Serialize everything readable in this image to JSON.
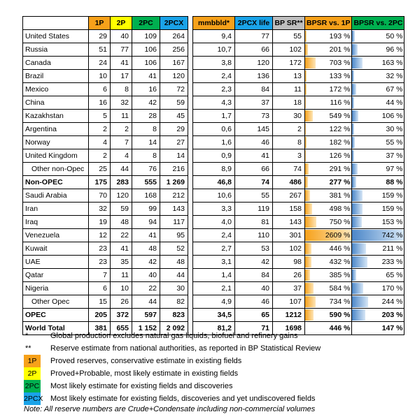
{
  "headers": [
    "",
    "1P",
    "2P",
    "2PC",
    "2PCX",
    "",
    "mmbbld*",
    "2PCX life",
    "BP SR**",
    "BPSR vs. 1P",
    "BPSR vs. 2PC"
  ],
  "rows": [
    {
      "name": "United States",
      "p1": "29",
      "p2": "40",
      "pc2": "109",
      "pcx2": "264",
      "mmbbld": "9,4",
      "life": "77",
      "bpsr": "55",
      "v1": "193 %",
      "v2": "50 %",
      "f1": 0.035,
      "f2": 0.05,
      "bold": false
    },
    {
      "name": "Russia",
      "p1": "51",
      "p2": "77",
      "pc2": "106",
      "pcx2": "256",
      "mmbbld": "10,7",
      "life": "66",
      "bpsr": "102",
      "v1": "201 %",
      "v2": "96 %",
      "f1": 0.06,
      "f2": 0.1,
      "bold": false
    },
    {
      "name": "Canada",
      "p1": "24",
      "p2": "41",
      "pc2": "106",
      "pcx2": "167",
      "mmbbld": "3,8",
      "life": "120",
      "bpsr": "172",
      "v1": "703 %",
      "v2": "163 %",
      "f1": 0.22,
      "f2": 0.2,
      "bold": false
    },
    {
      "name": "Brazil",
      "p1": "10",
      "p2": "17",
      "pc2": "41",
      "pcx2": "120",
      "mmbbld": "2,4",
      "life": "136",
      "bpsr": "13",
      "v1": "133 %",
      "v2": "32 %",
      "f1": 0.025,
      "f2": 0.03,
      "bold": false
    },
    {
      "name": "Mexico",
      "p1": "6",
      "p2": "8",
      "pc2": "16",
      "pcx2": "72",
      "mmbbld": "2,3",
      "life": "84",
      "bpsr": "11",
      "v1": "172 %",
      "v2": "67 %",
      "f1": 0.03,
      "f2": 0.07,
      "bold": false
    },
    {
      "name": "China",
      "p1": "16",
      "p2": "32",
      "pc2": "42",
      "pcx2": "59",
      "mmbbld": "4,3",
      "life": "37",
      "bpsr": "18",
      "v1": "116 %",
      "v2": "44 %",
      "f1": 0.02,
      "f2": 0.04,
      "bold": false
    },
    {
      "name": "Kazakhstan",
      "p1": "5",
      "p2": "11",
      "pc2": "28",
      "pcx2": "45",
      "mmbbld": "1,7",
      "life": "73",
      "bpsr": "30",
      "v1": "549 %",
      "v2": "106 %",
      "f1": 0.17,
      "f2": 0.12,
      "bold": false
    },
    {
      "name": "Argentina",
      "p1": "2",
      "p2": "2",
      "pc2": "8",
      "pcx2": "29",
      "mmbbld": "0,6",
      "life": "145",
      "bpsr": "2",
      "v1": "122 %",
      "v2": "30 %",
      "f1": 0.02,
      "f2": 0.03,
      "bold": false
    },
    {
      "name": "Norway",
      "p1": "4",
      "p2": "7",
      "pc2": "14",
      "pcx2": "27",
      "mmbbld": "1,6",
      "life": "46",
      "bpsr": "8",
      "v1": "182 %",
      "v2": "55 %",
      "f1": 0.03,
      "f2": 0.05,
      "bold": false
    },
    {
      "name": "United Kingdom",
      "p1": "2",
      "p2": "4",
      "pc2": "8",
      "pcx2": "14",
      "mmbbld": "0,9",
      "life": "41",
      "bpsr": "3",
      "v1": "126 %",
      "v2": "37 %",
      "f1": 0.02,
      "f2": 0.035,
      "bold": false
    },
    {
      "name": "Other non-Opec",
      "p1": "25",
      "p2": "44",
      "pc2": "76",
      "pcx2": "216",
      "mmbbld": "8,9",
      "life": "66",
      "bpsr": "74",
      "v1": "291 %",
      "v2": "97 %",
      "f1": 0.07,
      "f2": 0.1,
      "bold": false,
      "indent": true
    },
    {
      "name": "Non-OPEC",
      "p1": "175",
      "p2": "283",
      "pc2": "555",
      "pcx2": "1 269",
      "mmbbld": "46,8",
      "life": "74",
      "bpsr": "486",
      "v1": "277 %",
      "v2": "88 %",
      "f1": 0.06,
      "f2": 0.08,
      "bold": true
    },
    {
      "name": "Saudi Arabia",
      "p1": "70",
      "p2": "120",
      "pc2": "168",
      "pcx2": "212",
      "mmbbld": "10,6",
      "life": "55",
      "bpsr": "267",
      "v1": "381 %",
      "v2": "159 %",
      "f1": 0.1,
      "f2": 0.19,
      "bold": false
    },
    {
      "name": "Iran",
      "p1": "32",
      "p2": "59",
      "pc2": "99",
      "pcx2": "143",
      "mmbbld": "3,3",
      "life": "119",
      "bpsr": "158",
      "v1": "498 %",
      "v2": "159 %",
      "f1": 0.15,
      "f2": 0.19,
      "bold": false
    },
    {
      "name": "Iraq",
      "p1": "19",
      "p2": "48",
      "pc2": "94",
      "pcx2": "117",
      "mmbbld": "4,0",
      "life": "81",
      "bpsr": "143",
      "v1": "750 %",
      "v2": "153 %",
      "f1": 0.24,
      "f2": 0.18,
      "bold": false
    },
    {
      "name": "Venezuela",
      "p1": "12",
      "p2": "22",
      "pc2": "41",
      "pcx2": "95",
      "mmbbld": "2,4",
      "life": "110",
      "bpsr": "301",
      "v1": "2609 %",
      "v2": "742 %",
      "f1": 1.0,
      "f2": 1.0,
      "bold": false
    },
    {
      "name": "Kuwait",
      "p1": "23",
      "p2": "41",
      "pc2": "48",
      "pcx2": "52",
      "mmbbld": "2,7",
      "life": "53",
      "bpsr": "102",
      "v1": "446 %",
      "v2": "211 %",
      "f1": 0.14,
      "f2": 0.26,
      "bold": false
    },
    {
      "name": "UAE",
      "p1": "23",
      "p2": "35",
      "pc2": "42",
      "pcx2": "48",
      "mmbbld": "3,1",
      "life": "42",
      "bpsr": "98",
      "v1": "432 %",
      "v2": "233 %",
      "f1": 0.13,
      "f2": 0.29,
      "bold": false
    },
    {
      "name": "Qatar",
      "p1": "7",
      "p2": "11",
      "pc2": "40",
      "pcx2": "44",
      "mmbbld": "1,4",
      "life": "84",
      "bpsr": "26",
      "v1": "385 %",
      "v2": "65 %",
      "f1": 0.11,
      "f2": 0.07,
      "bold": false
    },
    {
      "name": "Nigeria",
      "p1": "6",
      "p2": "10",
      "pc2": "22",
      "pcx2": "30",
      "mmbbld": "2,1",
      "life": "40",
      "bpsr": "37",
      "v1": "584 %",
      "v2": "170 %",
      "f1": 0.18,
      "f2": 0.21,
      "bold": false
    },
    {
      "name": "Other Opec",
      "p1": "15",
      "p2": "26",
      "pc2": "44",
      "pcx2": "82",
      "mmbbld": "4,9",
      "life": "46",
      "bpsr": "107",
      "v1": "734 %",
      "v2": "244 %",
      "f1": 0.23,
      "f2": 0.31,
      "bold": false,
      "indent": true
    },
    {
      "name": "OPEC",
      "p1": "205",
      "p2": "372",
      "pc2": "597",
      "pcx2": "823",
      "mmbbld": "34,5",
      "life": "65",
      "bpsr": "1212",
      "v1": "590 %",
      "v2": "203 %",
      "f1": 0.18,
      "f2": 0.25,
      "bold": true
    },
    {
      "name": "World Total",
      "p1": "381",
      "p2": "655",
      "pc2": "1 152",
      "pcx2": "2 092",
      "mmbbld": "81,2",
      "life": "71",
      "bpsr": "1698",
      "v1": "446 %",
      "v2": "147 %",
      "f1": 0.0,
      "f2": 0.0,
      "bold": true
    }
  ],
  "notes": [
    {
      "mark": "*",
      "text": "Global production excludes natural gas liquids, biofuel and refinery gains",
      "swatch": ""
    },
    {
      "mark": "**",
      "text": "Reserve estimate from national authorities, as reported in BP Statistical Review",
      "swatch": ""
    },
    {
      "mark": "1P",
      "text": "Proved reserves, conservative estimate in existing fields",
      "swatch": "sw1p"
    },
    {
      "mark": "2P",
      "text": "Proved+Probable, most likely estimate in existing fields",
      "swatch": "sw2p"
    },
    {
      "mark": "2PC",
      "text": "Most likely estimate for existing fields and discoveries",
      "swatch": "sw2pc"
    },
    {
      "mark": "2PCX",
      "text": "Most likely estimate for existing fields, discoveries and yet undiscovered fields",
      "swatch": "sw2pcx"
    }
  ],
  "footnote": "Note: All reserve numbers are Crude+Condensate including non-commercial volumes",
  "colors": {
    "1P": "#f7a11a",
    "2P": "#ffff00",
    "2PC": "#00b050",
    "2PCX": "#1aa3e8",
    "BP SR": "#bfbfbf"
  }
}
